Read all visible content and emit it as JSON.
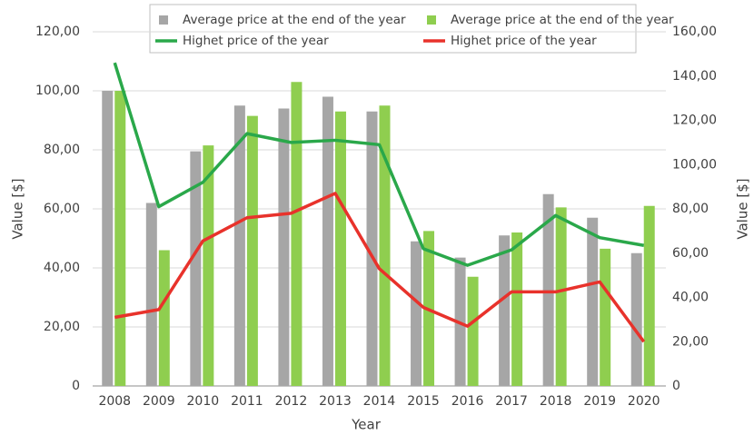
{
  "chart_data": {
    "type": "bar",
    "x_label": "Year",
    "y_label": "Value [$]",
    "y2_label": "Value [$]",
    "categories": [
      "2008",
      "2009",
      "2010",
      "2011",
      "2012",
      "2013",
      "2014",
      "2015",
      "2016",
      "2017",
      "2018",
      "2019",
      "2020"
    ],
    "series": [
      {
        "name": "Average price at the end of the year",
        "type": "bar",
        "color": "#a6a6a6",
        "values": [
          100,
          62,
          79.5,
          95,
          94,
          98,
          93,
          49,
          43.5,
          51,
          65,
          57,
          45
        ]
      },
      {
        "name": "Average price at the end of the year",
        "type": "bar",
        "color": "#8fce4f",
        "values": [
          100,
          46,
          81.5,
          91.5,
          103,
          93,
          95,
          52.5,
          37,
          52,
          60.5,
          46.5,
          61
        ]
      },
      {
        "name": "Highet price of the year",
        "type": "line",
        "axis": "y2",
        "color": "#2aa84a",
        "values": [
          146,
          81,
          92,
          114,
          110,
          111,
          109,
          62,
          54.5,
          61.5,
          77,
          67,
          63.5
        ]
      },
      {
        "name": "Highet price of the year",
        "type": "line",
        "axis": "y2",
        "color": "#e8322b",
        "values": [
          31,
          34.5,
          65.5,
          76,
          78,
          87,
          53,
          35.5,
          27,
          42.5,
          42.5,
          47,
          20
        ]
      }
    ],
    "ylim": [
      0,
      120
    ],
    "yticks": [
      0,
      {
        "value": 20,
        "label": "20,00"
      },
      {
        "value": 40,
        "label": "40,00"
      },
      {
        "value": 60,
        "label": "60,00"
      },
      {
        "value": 80,
        "label": "80,00"
      },
      {
        "value": 100,
        "label": "100,00"
      },
      {
        "value": 120,
        "label": "120,00"
      }
    ],
    "y2lim": [
      0,
      160
    ],
    "y2ticks": [
      0,
      {
        "value": 20,
        "label": "20,00"
      },
      {
        "value": 40,
        "label": "40,00"
      },
      {
        "value": 60,
        "label": "60,00"
      },
      {
        "value": 80,
        "label": "80,00"
      },
      {
        "value": 100,
        "label": "100,00"
      },
      {
        "value": 120,
        "label": "120,00"
      },
      {
        "value": 140,
        "label": "140,00"
      },
      {
        "value": 160,
        "label": "160,00"
      }
    ],
    "grid": true
  }
}
